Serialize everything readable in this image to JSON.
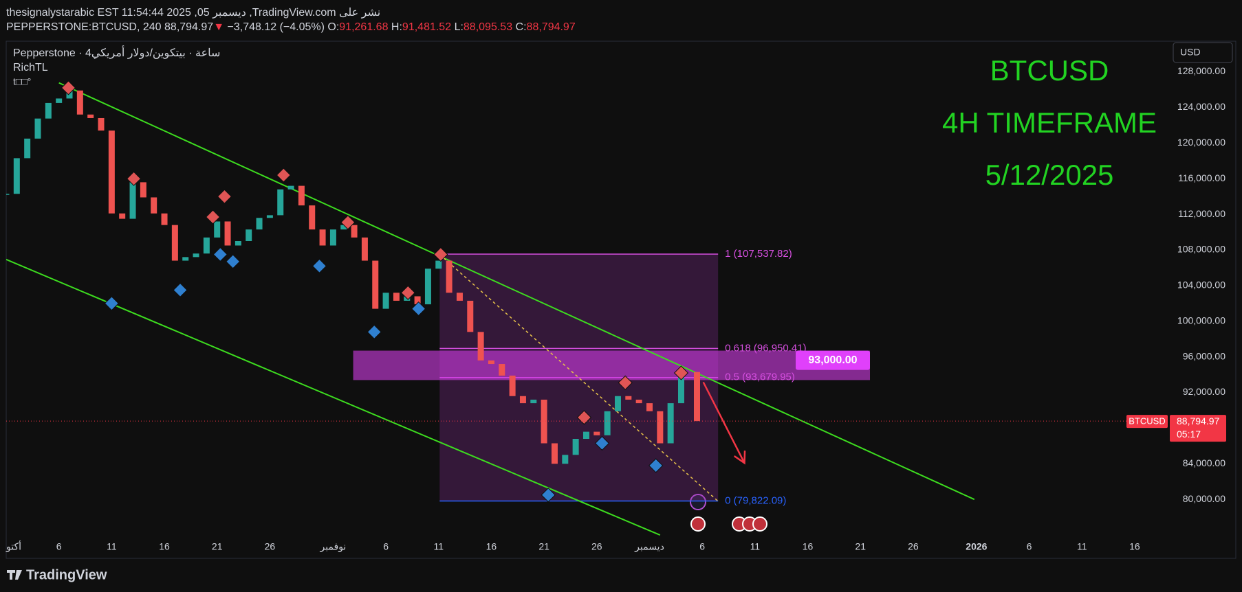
{
  "header": {
    "publisher": "thesignalystarabic EST 11:54:44 2025 ,05 ديسمبر ,TradingView.com نشر على",
    "symbol": "PEPPERSTONE:BTCUSD, 240",
    "price": "88,794.97",
    "direction": "▼",
    "change": "−3,748.12 (−4.05%)",
    "ohlc": [
      {
        "label": "O:",
        "value": "91,261.68"
      },
      {
        "label": "H:",
        "value": "91,481.52"
      },
      {
        "label": "L:",
        "value": "88,095.53"
      },
      {
        "label": "C:",
        "value": "88,794.97"
      }
    ]
  },
  "legend": {
    "source": "Pepperstone · 4ساعة · بيتكوين/دولار أمريكي",
    "indicator": "RichTL",
    "extra": "t□□°"
  },
  "currency_button": "USD",
  "footer": {
    "logo": "TradingView"
  },
  "chart_data": {
    "type": "candlestick",
    "annotations": [
      "BTCUSD",
      "4H TIMEFRAME",
      "5/12/2025"
    ],
    "annotation_color": "#22d322",
    "x": [
      0,
      1,
      2,
      3,
      4,
      5,
      6,
      7,
      8,
      9,
      10,
      11,
      12,
      13,
      14,
      15,
      16,
      17,
      18,
      19,
      20,
      21,
      22,
      23,
      24,
      25,
      26,
      27,
      28,
      29,
      30,
      31,
      32,
      33,
      34,
      35,
      36,
      37,
      38,
      39,
      40,
      41,
      42,
      43,
      44,
      45,
      46,
      47,
      48,
      49,
      50,
      51,
      52,
      53,
      54,
      55,
      56,
      57,
      58,
      59,
      60,
      61,
      62,
      63,
      64,
      65.5
    ],
    "values": [
      114300,
      118300,
      120500,
      122750,
      124500,
      125000,
      125900,
      123200,
      122800,
      121400,
      112100,
      111500,
      115600,
      113900,
      112100,
      110800,
      106800,
      107200,
      107600,
      109400,
      111200,
      108500,
      109000,
      110300,
      111600,
      111900,
      114800,
      115200,
      113000,
      110300,
      108500,
      110300,
      110800,
      109400,
      106800,
      101400,
      103200,
      102300,
      102800,
      101900,
      105900,
      106800,
      103200,
      102300,
      98800,
      95600,
      95200,
      93900,
      91600,
      90800,
      91200,
      86300,
      84000,
      85000,
      86800,
      87600,
      87200,
      89900,
      91600,
      91200,
      90800,
      89900,
      86300,
      90800,
      94300,
      88794.97
    ],
    "up_color": "#26a69a",
    "down_color": "#ef5350",
    "xlim": [
      0,
      110.2
    ],
    "xticks": [
      {
        "value": 0,
        "label": "أكتو"
      },
      {
        "value": 5,
        "label": "6"
      },
      {
        "value": 10,
        "label": "11"
      },
      {
        "value": 15,
        "label": "16"
      },
      {
        "value": 20,
        "label": "21"
      },
      {
        "value": 25,
        "label": "26"
      },
      {
        "value": 31,
        "label": "نوفمبر"
      },
      {
        "value": 36,
        "label": "6"
      },
      {
        "value": 41,
        "label": "11"
      },
      {
        "value": 46,
        "label": "16"
      },
      {
        "value": 51,
        "label": "21"
      },
      {
        "value": 56,
        "label": "26"
      },
      {
        "value": 61,
        "label": "ديسمبر"
      },
      {
        "value": 66,
        "label": "6"
      },
      {
        "value": 71,
        "label": "11"
      },
      {
        "value": 76,
        "label": "16"
      },
      {
        "value": 81,
        "label": "21"
      },
      {
        "value": 86,
        "label": "26"
      },
      {
        "value": 92,
        "label": "2026"
      },
      {
        "value": 97,
        "label": "6"
      },
      {
        "value": 102,
        "label": "11"
      },
      {
        "value": 107,
        "label": "16"
      }
    ],
    "ylim": [
      75700,
      131200
    ],
    "yticks": [
      {
        "value": 80000,
        "label": "80,000.00"
      },
      {
        "value": 84000,
        "label": "84,000.00"
      },
      {
        "value": 88000,
        "label": "88,000.00"
      },
      {
        "value": 92000,
        "label": "92,000.00"
      },
      {
        "value": 96000,
        "label": "96,000.00"
      },
      {
        "value": 100000,
        "label": "100,000.00"
      },
      {
        "value": 104000,
        "label": "104,000.00"
      },
      {
        "value": 108000,
        "label": "108,000.00"
      },
      {
        "value": 112000,
        "label": "112,000.00"
      },
      {
        "value": 116000,
        "label": "116,000.00"
      },
      {
        "value": 120000,
        "label": "120,000.00"
      },
      {
        "value": 124000,
        "label": "124,000.00"
      },
      {
        "value": 128000,
        "label": "128,000.00"
      }
    ],
    "grid": false,
    "pivot_highs": {
      "color": "#e05555",
      "x": [
        5.9,
        12.1,
        19.6,
        20.7,
        26.3,
        32.4,
        38.1,
        41.2,
        54.8,
        58.7,
        64.0
      ],
      "values": [
        126200,
        116000,
        111700,
        114000,
        116400,
        111100,
        103200,
        107500,
        89200,
        93100,
        94200
      ]
    },
    "pivot_lows": {
      "color": "#2f80d0",
      "x": [
        10.0,
        16.5,
        20.3,
        21.5,
        29.7,
        34.9,
        39.1,
        51.4,
        56.5,
        61.6
      ],
      "values": [
        102000,
        103500,
        107500,
        106700,
        106200,
        98800,
        101400,
        80500,
        86300,
        83800
      ]
    },
    "trendlines": [
      {
        "color": "#3ddc1f",
        "x": [
          5,
          91.8
        ],
        "values": [
          126756,
          80000
        ]
      },
      {
        "color": "#3ddc1f",
        "x": [
          0,
          62.0
        ],
        "values": [
          106933,
          76000
        ]
      }
    ],
    "dashed_line": {
      "color": "#e8c34a",
      "x": [
        41.1,
        67.5
      ],
      "values": [
        107500,
        79800
      ]
    },
    "arrow": {
      "color": "#f23645",
      "x": [
        66.1,
        70.0
      ],
      "values": [
        93160,
        84090
      ]
    },
    "fib": {
      "x": [
        41.1,
        67.5
      ],
      "fill": "rgba(150,50,170,0.28)",
      "levels": [
        {
          "value": 107537.82,
          "label": "1 (107,537.82)",
          "color": "#d64fe0"
        },
        {
          "value": 96950.41,
          "label": "0.618 (96,950.41)",
          "color": "#d64fe0"
        },
        {
          "value": 93679.95,
          "label": "0.5 (93,679.95)",
          "color": "#d64fe0"
        },
        {
          "value": 79822.09,
          "label": "0 (79,822.09)",
          "color": "#2962ff"
        }
      ]
    },
    "zone": {
      "x": [
        32.9,
        81.9
      ],
      "values": [
        96700,
        93400
      ],
      "fill": "rgba(210,60,230,0.6)",
      "label": "93,000.00",
      "label_color": "#e040fb"
    },
    "last_price": {
      "symbol": "BTCUSD",
      "price_label": "88,794.97",
      "countdown": "05:17",
      "color": "#f23645"
    }
  }
}
